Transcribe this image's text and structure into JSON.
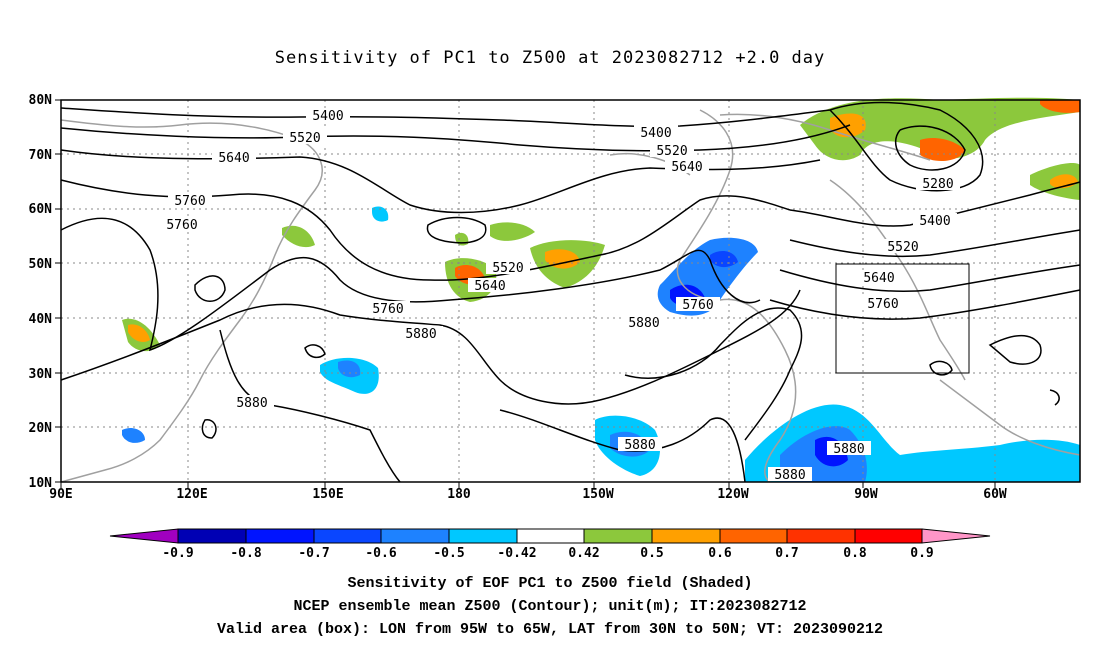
{
  "title": "Sensitivity of PC1 to Z500 at 2023082712 +2.0 day",
  "map": {
    "lat_ticks": [
      "80N",
      "70N",
      "60N",
      "50N",
      "40N",
      "30N",
      "20N",
      "10N"
    ],
    "lon_ticks": [
      "90E",
      "120E",
      "150E",
      "180",
      "150W",
      "120W",
      "90W",
      "60W"
    ],
    "contour_labels": [
      "5400",
      "5520",
      "5640",
      "5760",
      "5760",
      "5880",
      "5880",
      "5400",
      "5520",
      "5640",
      "5520",
      "5640",
      "5760",
      "5880",
      "5760",
      "5880",
      "5400",
      "5520",
      "5640",
      "5760",
      "5280",
      "5880",
      "5880"
    ],
    "valid_box": {
      "lon": [
        "95W",
        "65W"
      ],
      "lat": [
        "30N",
        "50N"
      ]
    }
  },
  "colorbar": {
    "labels": [
      "-0.9",
      "-0.8",
      "-0.7",
      "-0.6",
      "-0.5",
      "-0.42",
      "0.42",
      "0.5",
      "0.6",
      "0.7",
      "0.8",
      "0.9"
    ],
    "colors": [
      "#a000c0",
      "#0000b4",
      "#0014ff",
      "#0a46ff",
      "#1e82ff",
      "#00c8ff",
      "#ffffff",
      "#8cc83c",
      "#ffa000",
      "#ff6400",
      "#ff3200",
      "#ff0000",
      "#ff96c8"
    ]
  },
  "captions": {
    "line1": "Sensitivity of EOF PC1 to Z500 field (Shaded)",
    "line2": "NCEP ensemble mean Z500 (Contour); unit(m); IT:2023082712",
    "line3": "Valid area (box): LON from 95W to 65W, LAT from 30N to 50N; VT: 2023090212"
  }
}
